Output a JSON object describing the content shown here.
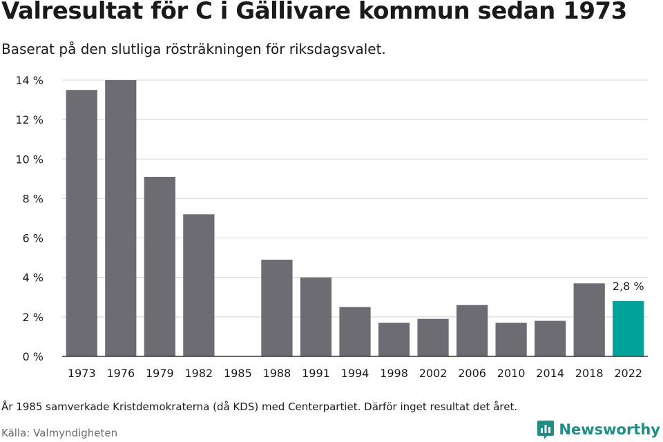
{
  "title": "Valresultat för C i Gällivare kommun sedan 1973",
  "subtitle": "Baserat på den slutliga rösträkningen för riksdagsvalet.",
  "footnote": "År 1985 samverkade Kristdemokraterna (då KDS) med Centerpartiet. Därför inget resultat det året.",
  "source": "Källa: Valmyndigheten",
  "brand": {
    "name": "Newsworthy",
    "icon": "newsworthy-logo-icon",
    "color": "#1b8f83"
  },
  "chart_data": {
    "type": "bar",
    "categories": [
      "1973",
      "1976",
      "1979",
      "1982",
      "1985",
      "1988",
      "1991",
      "1994",
      "1998",
      "2002",
      "2006",
      "2010",
      "2014",
      "2018",
      "2022"
    ],
    "values": [
      13.5,
      14.0,
      9.1,
      7.2,
      null,
      4.9,
      4.0,
      2.5,
      1.7,
      1.9,
      2.6,
      1.7,
      1.8,
      3.7,
      2.8
    ],
    "ylim": [
      0,
      14
    ],
    "yticks": [
      0,
      2,
      4,
      6,
      8,
      10,
      12,
      14
    ],
    "ytick_labels": [
      "0 %",
      "2 %",
      "4 %",
      "6 %",
      "8 %",
      "10 %",
      "12 %",
      "14 %"
    ],
    "data_labels": [
      {
        "category": "2022",
        "text": "2,8 %"
      }
    ],
    "highlight": {
      "category": "2022",
      "color": "#00a398"
    },
    "bar_color": "#6d6c72",
    "grid": true
  }
}
